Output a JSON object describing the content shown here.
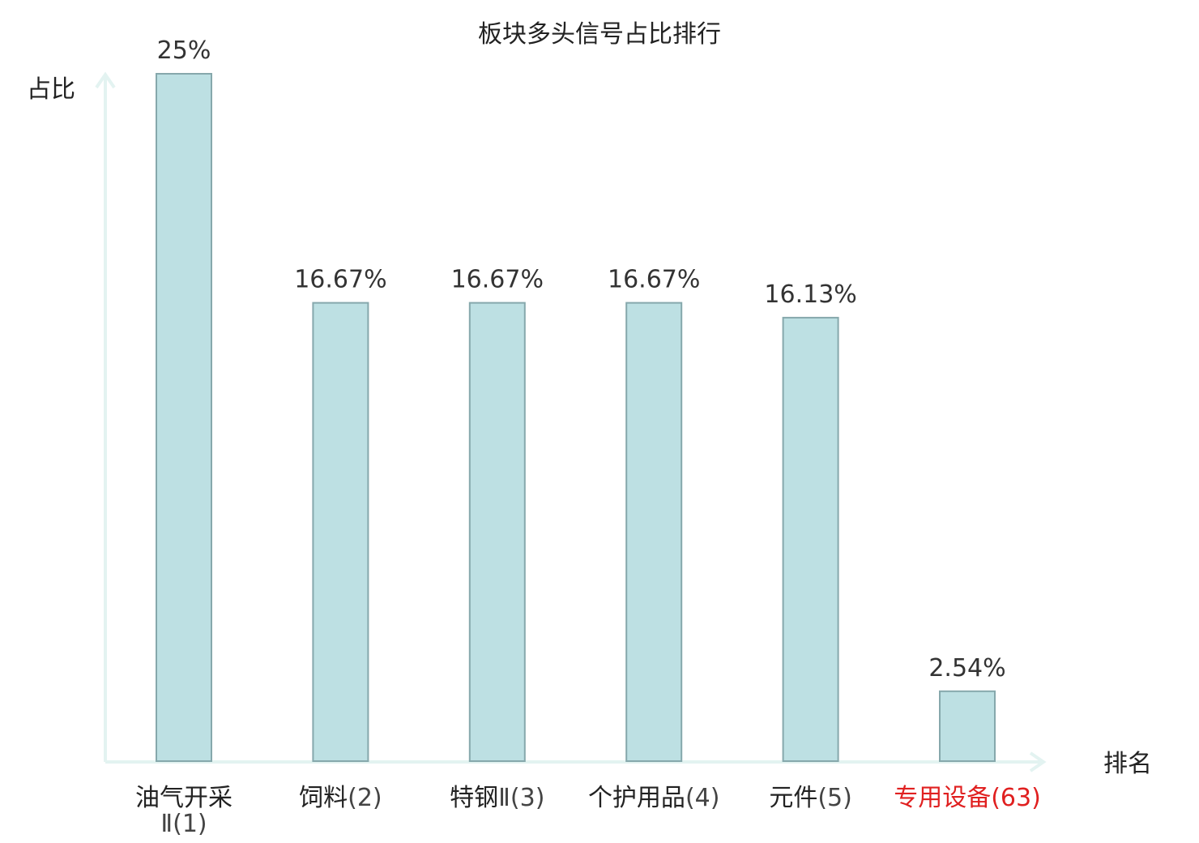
{
  "chart_data": {
    "type": "bar",
    "title": "板块多头信号占比排行",
    "xlabel": "排名",
    "ylabel": "占比",
    "ylim": [
      0,
      25
    ],
    "grid": false,
    "legend": "none",
    "categories": [
      {
        "name": "油气开采",
        "rank": "Ⅱ(1)",
        "highlight": false
      },
      {
        "name": "饲料",
        "rank": "(2)",
        "highlight": false
      },
      {
        "name": "特钢",
        "rank": "Ⅱ(3)",
        "highlight": false
      },
      {
        "name": "个护用品",
        "rank": "(4)",
        "highlight": false
      },
      {
        "name": "元件",
        "rank": "(5)",
        "highlight": false
      },
      {
        "name": "专用设备",
        "rank": "(63)",
        "highlight": true
      }
    ],
    "values": [
      25,
      16.67,
      16.67,
      16.67,
      16.13,
      2.54
    ],
    "value_labels": [
      "25%",
      "16.67%",
      "16.67%",
      "16.67%",
      "16.13%",
      "2.54%"
    ],
    "colors": {
      "bar_fill": "#bde0e3",
      "bar_stroke": "#86a8ac",
      "axis": "#e3f3f1",
      "highlight_label": "#e02020"
    }
  }
}
